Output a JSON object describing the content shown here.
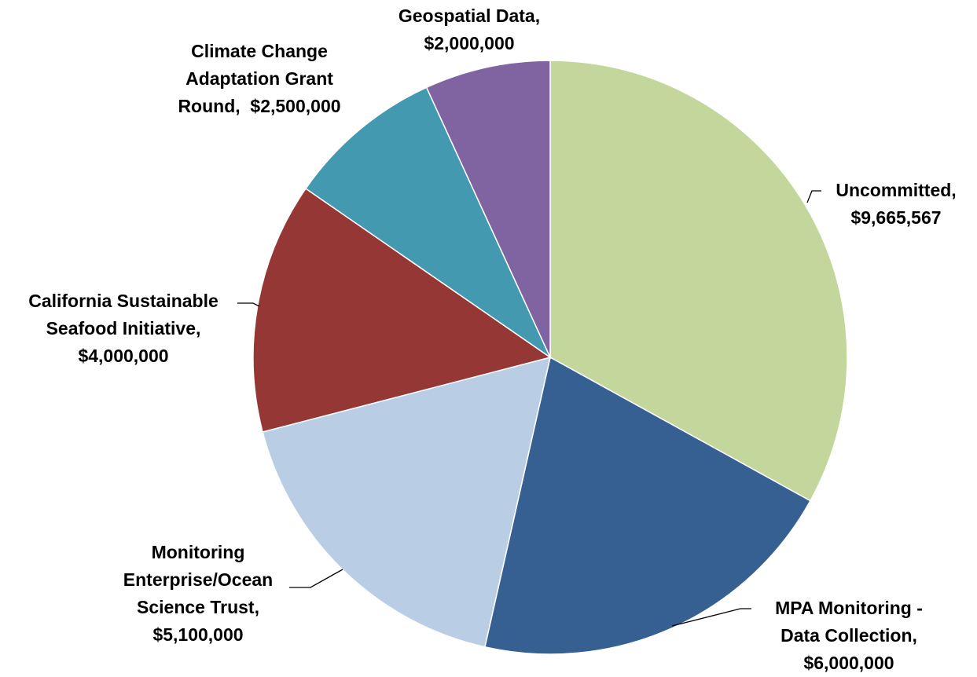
{
  "chart_data": {
    "type": "pie",
    "categories": [
      "Uncommitted,",
      "MPA Monitoring - Data Collection,",
      "Monitoring Enterprise/Ocean Science Trust,",
      "California Sustainable Seafood Initiative,",
      "Climate Change Adaptation Grant Round,",
      "Geospatial Data,"
    ],
    "values": [
      9665567,
      6000000,
      5100000,
      4000000,
      2500000,
      2000000
    ],
    "value_labels": [
      "$9,665,567",
      "$6,000,000",
      "$5,100,000",
      "$4,000,000",
      "$2,500,000",
      "$2,000,000"
    ],
    "colors": [
      "#c3d69b",
      "#376092",
      "#b9cde5",
      "#953735",
      "#4399b0",
      "#8064a2"
    ]
  }
}
